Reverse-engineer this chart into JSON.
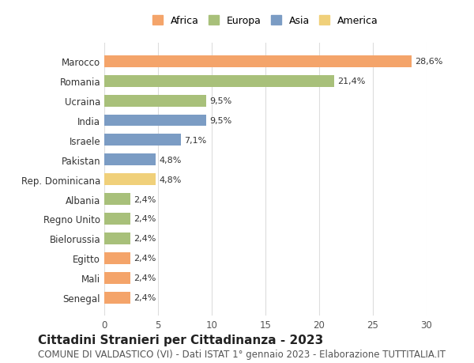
{
  "categories": [
    "Marocco",
    "Romania",
    "Ucraina",
    "India",
    "Israele",
    "Pakistan",
    "Rep. Dominicana",
    "Albania",
    "Regno Unito",
    "Bielorussia",
    "Egitto",
    "Mali",
    "Senegal"
  ],
  "values": [
    28.6,
    21.4,
    9.5,
    9.5,
    7.1,
    4.8,
    4.8,
    2.4,
    2.4,
    2.4,
    2.4,
    2.4,
    2.4
  ],
  "labels": [
    "28,6%",
    "21,4%",
    "9,5%",
    "9,5%",
    "7,1%",
    "4,8%",
    "4,8%",
    "2,4%",
    "2,4%",
    "2,4%",
    "2,4%",
    "2,4%",
    "2,4%"
  ],
  "continents": [
    "Africa",
    "Europa",
    "Europa",
    "Asia",
    "Asia",
    "Asia",
    "America",
    "Europa",
    "Europa",
    "Europa",
    "Africa",
    "Africa",
    "Africa"
  ],
  "colors": {
    "Africa": "#F4A46A",
    "Europa": "#A8C07A",
    "Asia": "#7B9CC4",
    "America": "#F0D07A"
  },
  "legend_order": [
    "Africa",
    "Europa",
    "Asia",
    "America"
  ],
  "xlim": [
    0,
    30
  ],
  "xticks": [
    0,
    5,
    10,
    15,
    20,
    25,
    30
  ],
  "title": "Cittadini Stranieri per Cittadinanza - 2023",
  "subtitle": "COMUNE DI VALDASTICO (VI) - Dati ISTAT 1° gennaio 2023 - Elaborazione TUTTITALIA.IT",
  "title_fontsize": 11,
  "subtitle_fontsize": 8.5,
  "background_color": "#ffffff",
  "grid_color": "#dddddd",
  "bar_height": 0.6,
  "label_fontsize": 8,
  "tick_fontsize": 8.5,
  "legend_fontsize": 9
}
